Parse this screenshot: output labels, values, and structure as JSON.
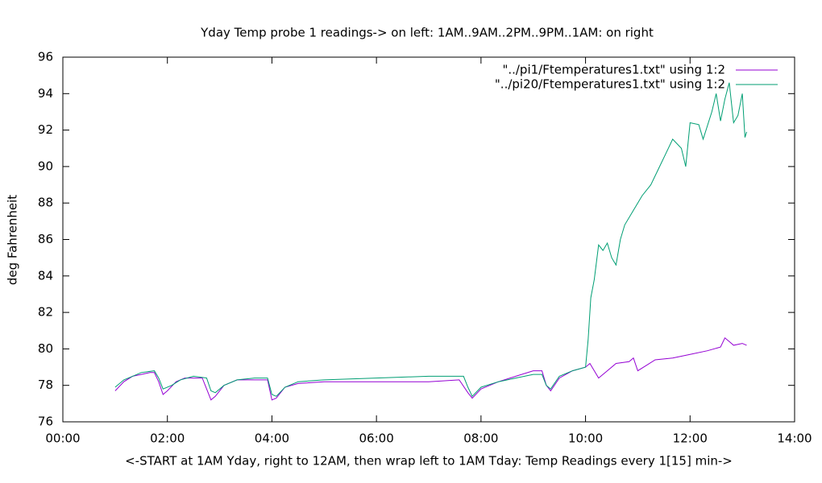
{
  "chart_data": {
    "type": "line",
    "title": "Yday Temp probe 1 readings-> on left: 1AM..9AM..2PM..9PM..1AM: on right",
    "x_label": "<-START at 1AM Yday, right to 12AM, then wrap left to 1AM Tday: Temp Readings every 1[15] min->",
    "y_label": "deg Fahrenheit",
    "xlim": [
      "00:00",
      "14:00"
    ],
    "xticks": [
      "00:00",
      "02:00",
      "04:00",
      "06:00",
      "08:00",
      "10:00",
      "12:00",
      "14:00"
    ],
    "ylim": [
      76,
      96
    ],
    "yticks": [
      76,
      78,
      80,
      82,
      84,
      86,
      88,
      90,
      92,
      94,
      96
    ],
    "legend": "top-right",
    "series": [
      {
        "name": "\"../pi1/Ftemperatures1.txt\" using 1:2",
        "color": "#9400d3",
        "x": [
          "01:00",
          "01:10",
          "01:20",
          "01:30",
          "01:40",
          "01:45",
          "01:50",
          "01:55",
          "02:00",
          "02:10",
          "02:20",
          "02:30",
          "02:40",
          "02:45",
          "02:50",
          "02:55",
          "03:05",
          "03:20",
          "03:40",
          "03:55",
          "04:00",
          "04:05",
          "04:15",
          "04:30",
          "05:00",
          "06:00",
          "07:00",
          "07:35",
          "07:45",
          "07:50",
          "08:00",
          "08:20",
          "08:40",
          "09:00",
          "09:10",
          "09:15",
          "09:20",
          "09:30",
          "09:45",
          "10:00",
          "10:05",
          "10:15",
          "10:25",
          "10:35",
          "10:50",
          "10:55",
          "11:00",
          "11:10",
          "11:20",
          "11:40",
          "12:00",
          "12:20",
          "12:35",
          "12:40",
          "12:45",
          "12:50",
          "13:00",
          "13:05"
        ],
        "values": [
          77.7,
          78.2,
          78.5,
          78.6,
          78.7,
          78.7,
          78.2,
          77.5,
          77.7,
          78.2,
          78.4,
          78.4,
          78.4,
          77.8,
          77.2,
          77.4,
          78.0,
          78.3,
          78.3,
          78.3,
          77.2,
          77.3,
          77.9,
          78.1,
          78.2,
          78.2,
          78.2,
          78.3,
          77.6,
          77.3,
          77.8,
          78.2,
          78.5,
          78.8,
          78.8,
          78.0,
          77.7,
          78.4,
          78.8,
          79.0,
          79.2,
          78.4,
          78.8,
          79.2,
          79.3,
          79.5,
          78.8,
          79.1,
          79.4,
          79.5,
          79.7,
          79.9,
          80.1,
          80.6,
          80.4,
          80.2,
          80.3,
          80.2
        ]
      },
      {
        "name": "\"../pi20/Ftemperatures1.txt\" using 1:2",
        "color": "#009e73",
        "x": [
          "01:00",
          "01:10",
          "01:20",
          "01:30",
          "01:45",
          "01:50",
          "01:55",
          "02:05",
          "02:15",
          "02:30",
          "02:45",
          "02:50",
          "02:55",
          "03:05",
          "03:20",
          "03:40",
          "03:55",
          "04:00",
          "04:05",
          "04:15",
          "04:30",
          "05:00",
          "06:00",
          "07:00",
          "07:40",
          "07:45",
          "07:50",
          "08:00",
          "08:20",
          "08:40",
          "09:00",
          "09:10",
          "09:15",
          "09:20",
          "09:30",
          "09:45",
          "10:00",
          "10:03",
          "10:06",
          "10:10",
          "10:15",
          "10:20",
          "10:25",
          "10:30",
          "10:35",
          "10:40",
          "10:45",
          "10:55",
          "11:05",
          "11:15",
          "11:25",
          "11:35",
          "11:40",
          "11:50",
          "11:55",
          "12:00",
          "12:10",
          "12:15",
          "12:25",
          "12:30",
          "12:35",
          "12:40",
          "12:45",
          "12:50",
          "12:55",
          "13:00",
          "13:03",
          "13:05"
        ],
        "values": [
          77.9,
          78.3,
          78.5,
          78.7,
          78.8,
          78.4,
          77.8,
          78.0,
          78.3,
          78.5,
          78.4,
          77.7,
          77.6,
          78.0,
          78.3,
          78.4,
          78.4,
          77.5,
          77.4,
          77.9,
          78.2,
          78.3,
          78.4,
          78.5,
          78.5,
          77.9,
          77.4,
          77.9,
          78.2,
          78.4,
          78.6,
          78.6,
          78.0,
          77.8,
          78.5,
          78.8,
          79.0,
          80.5,
          82.8,
          83.8,
          85.7,
          85.4,
          85.8,
          85.0,
          84.6,
          86.0,
          86.8,
          87.6,
          88.4,
          89.0,
          90.0,
          91.0,
          91.5,
          91.0,
          90.0,
          92.4,
          92.3,
          91.5,
          93.0,
          94.0,
          92.5,
          93.7,
          94.6,
          92.4,
          92.8,
          94.0,
          91.6,
          91.9
        ]
      }
    ]
  }
}
